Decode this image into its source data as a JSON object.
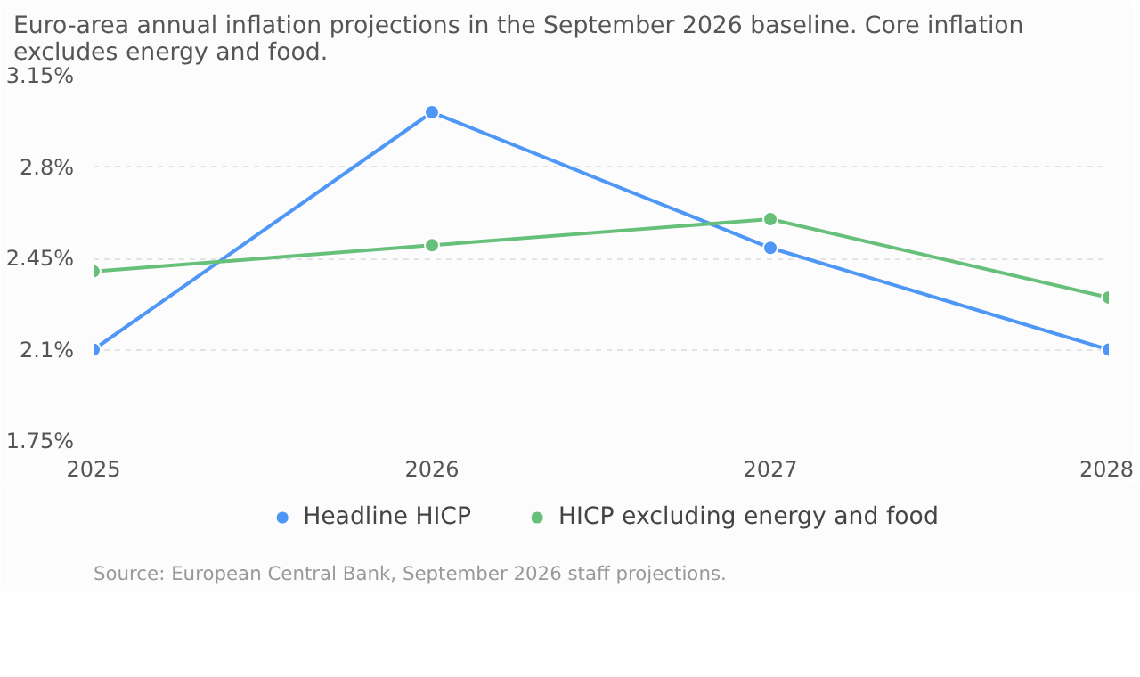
{
  "chart_data": {
    "type": "line",
    "title": "Euro-area annual inflation projections in the September 2026 baseline. Core inflation excludes energy and food.",
    "x": [
      2025,
      2026,
      2027,
      2028
    ],
    "series": [
      {
        "name": "Headline HICP",
        "color": "#4e97f7",
        "values": [
          2.1,
          3.01,
          2.49,
          2.1
        ]
      },
      {
        "name": "HICP excluding energy and food",
        "color": "#66c07a",
        "values": [
          2.4,
          2.5,
          2.6,
          2.3
        ]
      }
    ],
    "xlim": [
      2025,
      2028
    ],
    "xticks": [
      2025,
      2026,
      2027,
      2028
    ],
    "ylim": [
      1.75,
      3.15
    ],
    "yticks": [
      {
        "value": 1.75,
        "label": "1.75%"
      },
      {
        "value": 2.1,
        "label": "2.1%"
      },
      {
        "value": 2.45,
        "label": "2.45%"
      },
      {
        "value": 2.8,
        "label": "2.8%"
      },
      {
        "value": 3.15,
        "label": "3.15%"
      }
    ],
    "grid": "y",
    "legend": "bottom",
    "marker": "circle",
    "line_style": "solid",
    "annotations": [
      "Source: European Central Bank, September 2026 staff projections."
    ]
  }
}
